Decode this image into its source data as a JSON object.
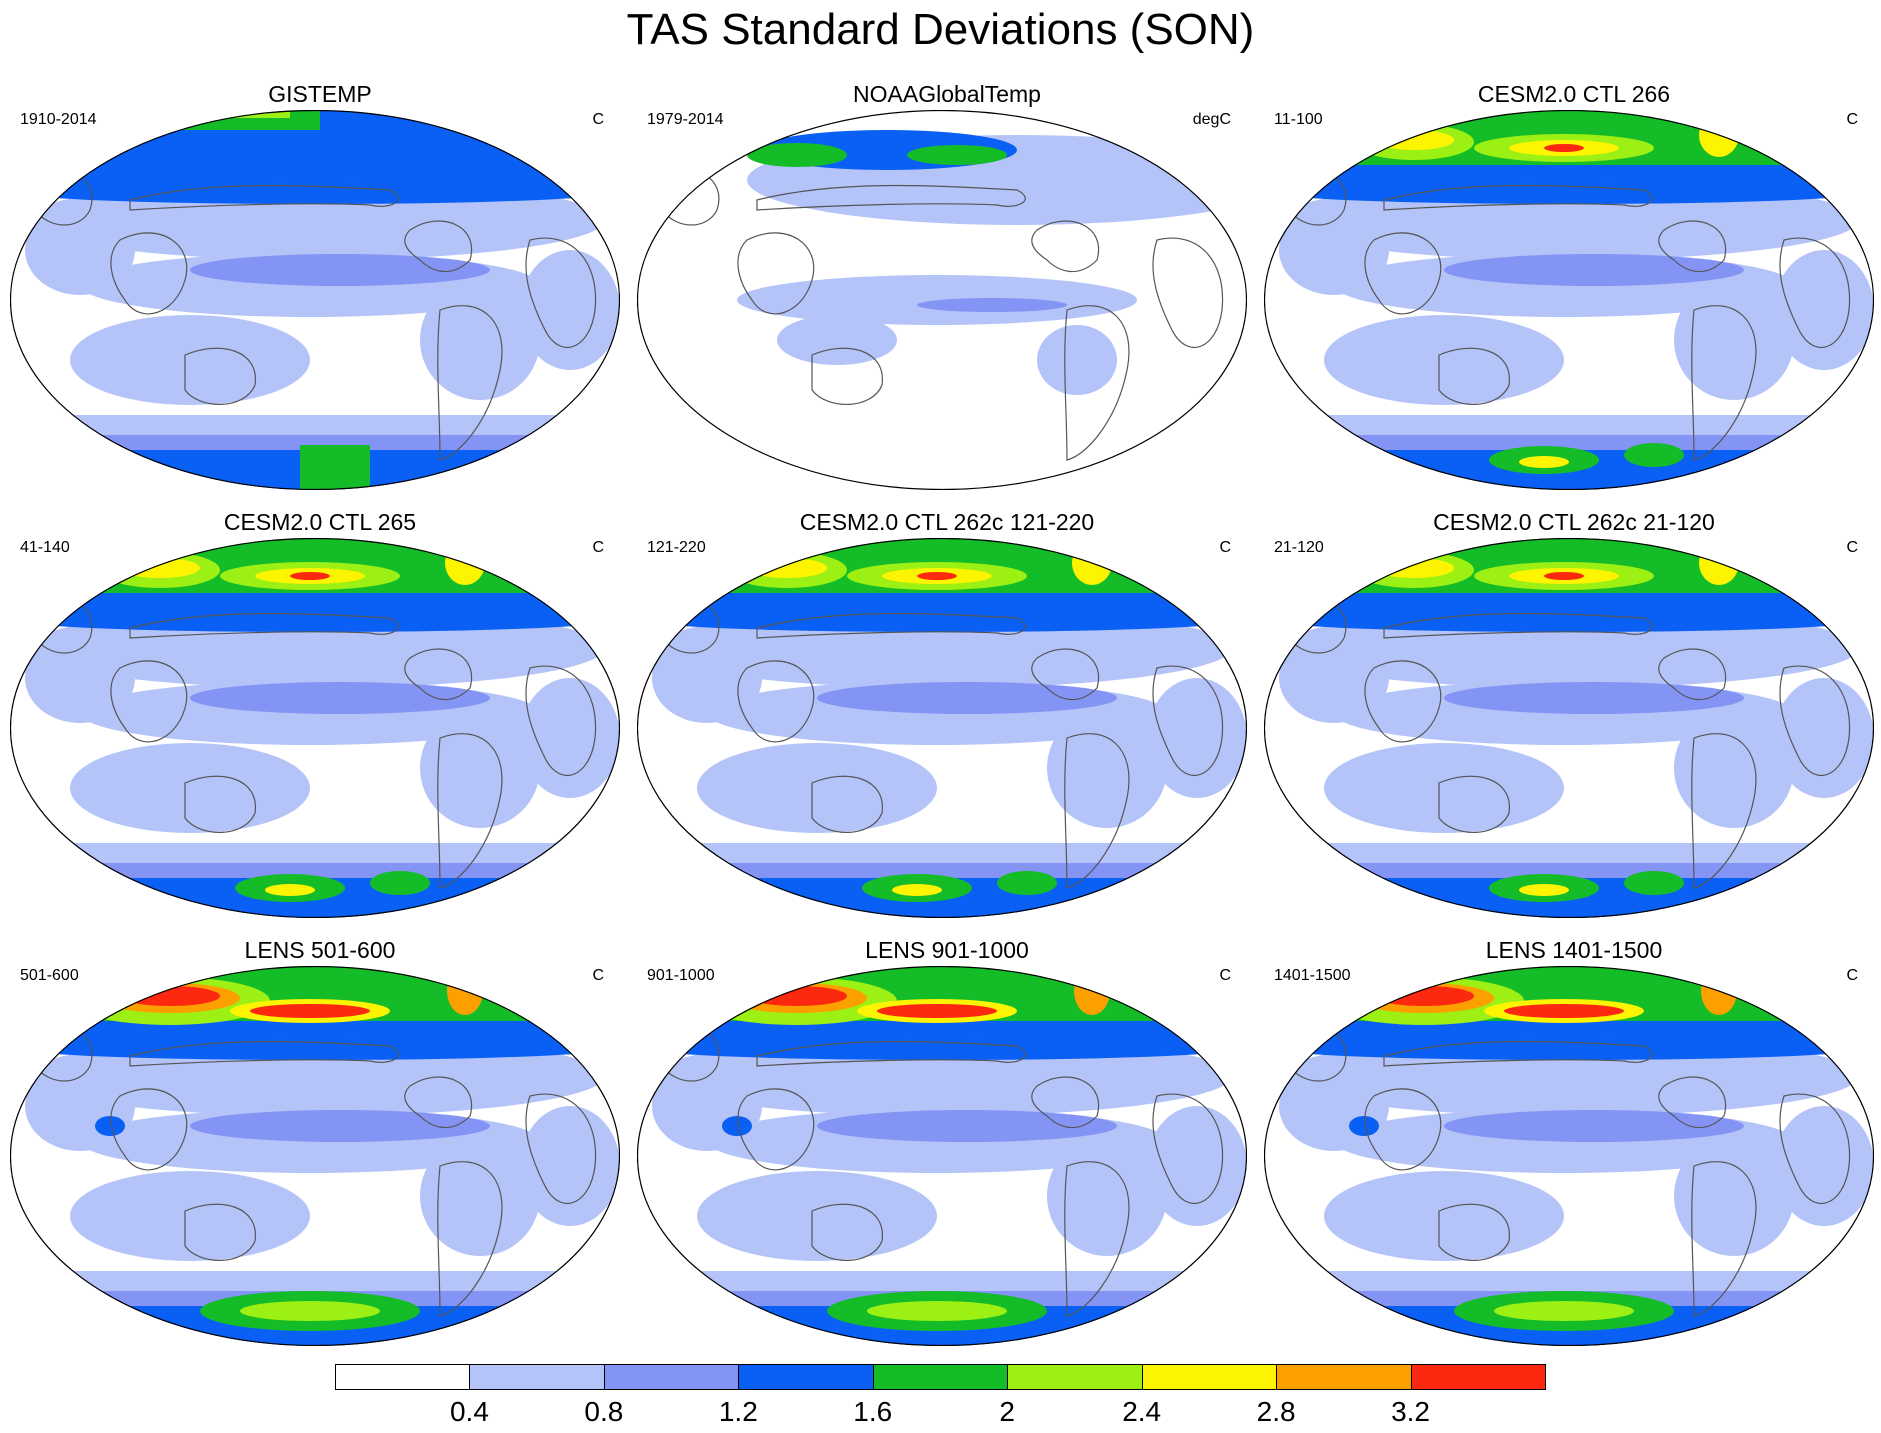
{
  "title": "TAS Standard Deviations (SON)",
  "panels": [
    {
      "title": "GISTEMP",
      "period": "1910-2014",
      "units": "C",
      "style": "gistemp"
    },
    {
      "title": "NOAAGlobalTemp",
      "period": "1979-2014",
      "units": "degC",
      "style": "noaa"
    },
    {
      "title": "CESM2.0 CTL 266",
      "period": "11-100",
      "units": "C",
      "style": "cesm"
    },
    {
      "title": "CESM2.0 CTL 265",
      "period": "41-140",
      "units": "C",
      "style": "cesm"
    },
    {
      "title": "CESM2.0 CTL 262c 121-220",
      "period": "121-220",
      "units": "C",
      "style": "cesm"
    },
    {
      "title": "CESM2.0 CTL 262c 21-120",
      "period": "21-120",
      "units": "C",
      "style": "cesm"
    },
    {
      "title": "LENS 501-600",
      "period": "501-600",
      "units": "C",
      "style": "lens"
    },
    {
      "title": "LENS 901-1000",
      "period": "901-1000",
      "units": "C",
      "style": "lens"
    },
    {
      "title": "LENS 1401-1500",
      "period": "1401-1500",
      "units": "C",
      "style": "lens"
    }
  ],
  "colorbar": {
    "colors": [
      "#ffffff",
      "#b4c4f8",
      "#8494f4",
      "#0a60f4",
      "#14bc28",
      "#9cf014",
      "#fcf400",
      "#fca000",
      "#fc2810"
    ],
    "labels": [
      "0.4",
      "0.8",
      "1.2",
      "1.6",
      "2",
      "2.4",
      "2.8",
      "3.2"
    ]
  }
}
